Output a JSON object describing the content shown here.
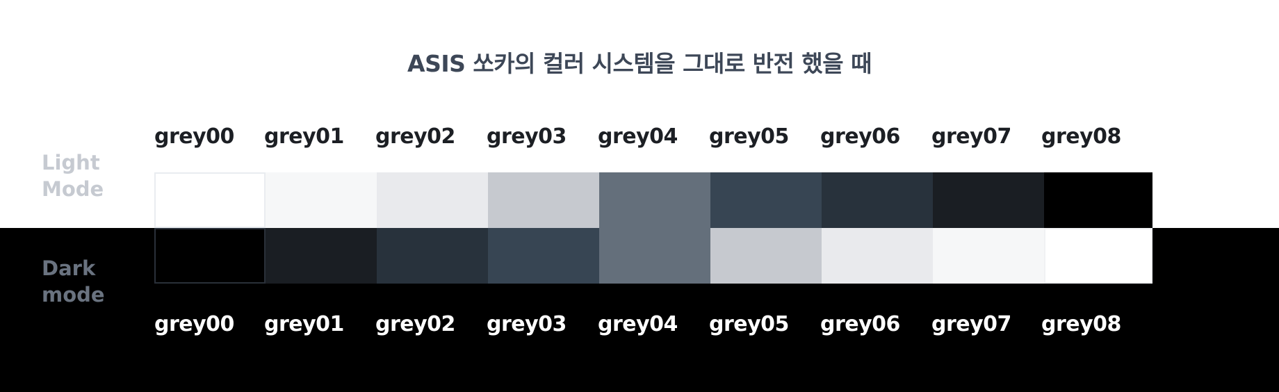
{
  "title": "ASIS 쏘카의 컬러 시스템을 그대로 반전 했을 때",
  "light_mode_label": "Light\nMode",
  "dark_mode_label": "Dark\nmode",
  "light": {
    "labels": [
      "grey00",
      "grey01",
      "grey02",
      "grey03",
      "grey04",
      "grey05",
      "grey06",
      "grey07",
      "grey08"
    ],
    "colors": [
      "#ffffff",
      "#f6f7f8",
      "#e9eaed",
      "#c6c9cf",
      "#646f7b",
      "#374553",
      "#28323c",
      "#1a1e23",
      "#000000"
    ]
  },
  "dark": {
    "labels": [
      "grey00",
      "grey01",
      "grey02",
      "grey03",
      "grey04",
      "grey05",
      "grey06",
      "grey07",
      "grey08"
    ],
    "colors": [
      "#000000",
      "#1a1e23",
      "#28323c",
      "#374553",
      "#646f7b",
      "#c6c9cf",
      "#e9eaed",
      "#f6f7f8",
      "#ffffff"
    ]
  },
  "colors": {
    "light_background": "#ffffff",
    "dark_background": "#000000",
    "title": "#3d4757",
    "light_label": "#c6cad1",
    "dark_label": "#6a7380"
  }
}
